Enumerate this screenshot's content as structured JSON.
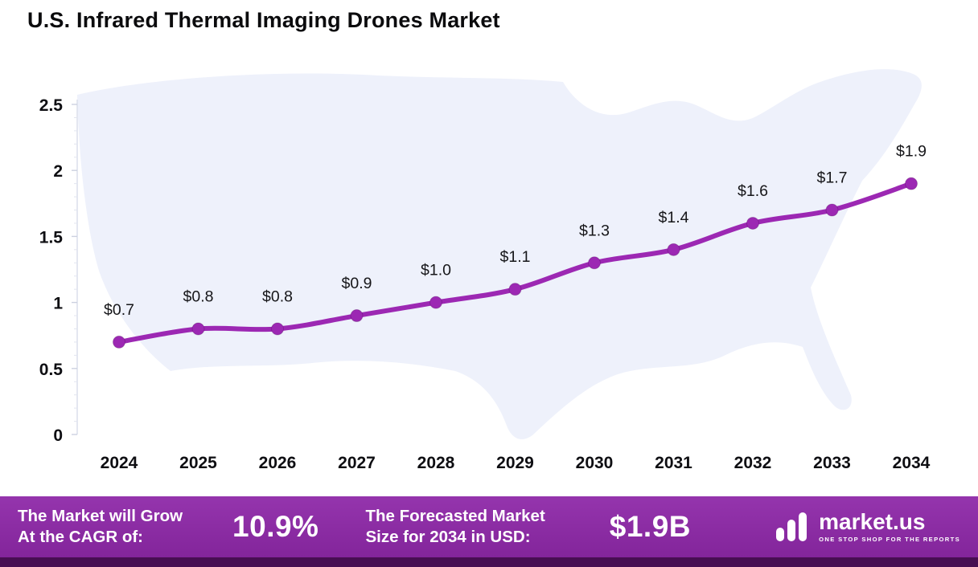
{
  "title": "U.S. Infrared Thermal Imaging Drones Market",
  "chart_data": {
    "type": "line",
    "title": "U.S. Infrared Thermal Imaging Drones Market",
    "categories": [
      "2024",
      "2025",
      "2026",
      "2027",
      "2028",
      "2029",
      "2030",
      "2031",
      "2032",
      "2033",
      "2034"
    ],
    "values": [
      0.7,
      0.8,
      0.8,
      0.9,
      1.0,
      1.1,
      1.3,
      1.4,
      1.6,
      1.7,
      1.9
    ],
    "labels": [
      "$0.7",
      "$0.8",
      "$0.8",
      "$0.9",
      "$1.0",
      "$1.1",
      "$1.3",
      "$1.4",
      "$1.6",
      "$1.7",
      "$1.9"
    ],
    "xlabel": "",
    "ylabel": "",
    "ylim": [
      0,
      2.5
    ],
    "yticks": [
      0,
      0.5,
      1,
      1.5,
      2,
      2.5
    ],
    "grid": false,
    "legend": false,
    "units": "USD Billion"
  },
  "footer": {
    "cagr_label_line1": "The Market will Grow",
    "cagr_label_line2": "At the CAGR of:",
    "cagr_value": "10.9%",
    "forecast_label_line1": "The Forecasted Market",
    "forecast_label_line2": "Size for 2034 in USD:",
    "forecast_value": "$1.9B",
    "brand": "market.us",
    "brand_tagline": "ONE STOP SHOP FOR THE REPORTS"
  },
  "colors": {
    "line": "#9c28b3",
    "footer_bg": "#8e28a8",
    "footer_strip": "#470e52",
    "map": "#eef1fb"
  }
}
